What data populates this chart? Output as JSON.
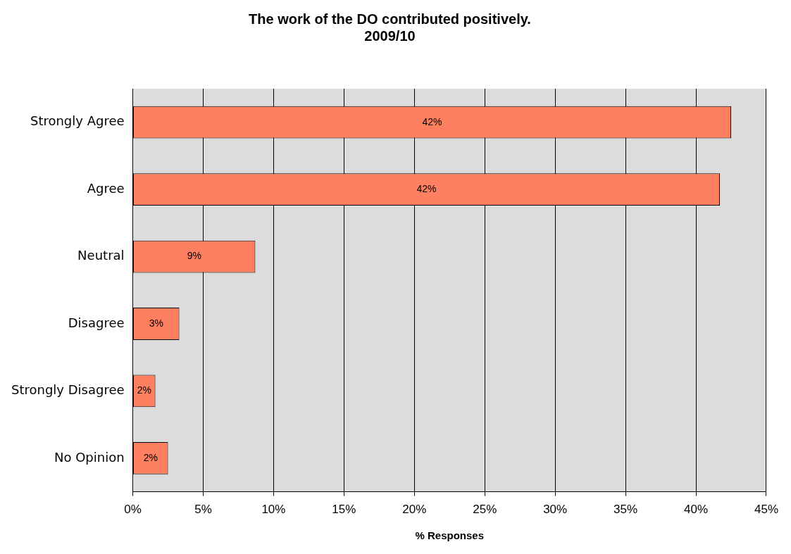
{
  "chart_data": {
    "type": "bar",
    "orientation": "horizontal",
    "title": "The work of the DO contributed positively.\n2009/10",
    "xlabel": "% Responses",
    "categories": [
      "Strongly Agree",
      "Agree",
      "Neutral",
      "Disagree",
      "Strongly Disagree",
      "No Opinion"
    ],
    "values": [
      42.5,
      41.7,
      8.7,
      3.3,
      1.6,
      2.5
    ],
    "value_labels": [
      "42%",
      "42%",
      "9%",
      "3%",
      "2%",
      "2%"
    ],
    "color": "#ff8060",
    "xlim": [
      0,
      45
    ],
    "xticks": [
      {
        "value": 0,
        "label": "0%"
      },
      {
        "value": 5,
        "label": "5%"
      },
      {
        "value": 10,
        "label": "10%"
      },
      {
        "value": 15,
        "label": "15%"
      },
      {
        "value": 20,
        "label": "20%"
      },
      {
        "value": 25,
        "label": "25%"
      },
      {
        "value": 30,
        "label": "30%"
      },
      {
        "value": 35,
        "label": "35%"
      },
      {
        "value": 40,
        "label": "40%"
      },
      {
        "value": 45,
        "label": "45%"
      }
    ],
    "grid": "x",
    "legend": false
  }
}
